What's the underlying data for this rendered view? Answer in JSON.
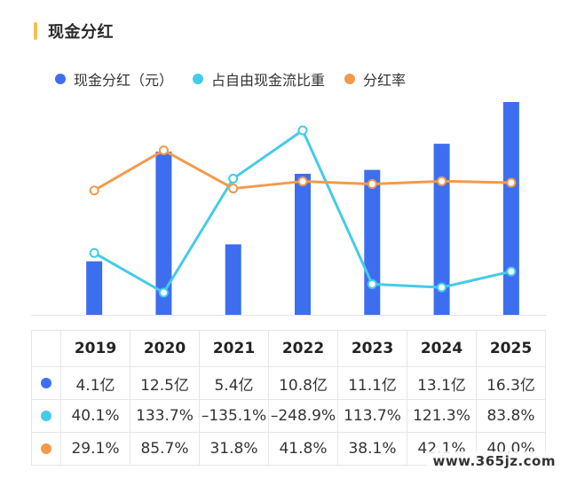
{
  "header": {
    "title": "现金分红"
  },
  "legend": [
    {
      "label": "现金分红（元）",
      "color": "#3e6ef0"
    },
    {
      "label": "占自由现金流比重",
      "color": "#45cbe8"
    },
    {
      "label": "分红率",
      "color": "#f39a4c"
    }
  ],
  "chart_data": {
    "type": "bar",
    "categories": [
      "2019",
      "2020",
      "2021",
      "2022",
      "2023",
      "2024",
      "2025"
    ],
    "series": [
      {
        "name": "现金分红（元）",
        "type": "bar",
        "unit": "亿",
        "values": [
          4.1,
          12.5,
          5.4,
          10.8,
          11.1,
          13.1,
          16.3
        ],
        "labels": [
          "4.1亿",
          "12.5亿",
          "5.4亿",
          "10.8亿",
          "11.1亿",
          "13.1亿",
          "16.3亿"
        ]
      },
      {
        "name": "占自由现金流比重",
        "type": "line",
        "unit": "%",
        "values": [
          40.1,
          133.7,
          -135.1,
          -248.9,
          113.7,
          121.3,
          83.8
        ],
        "labels": [
          "40.1%",
          "133.7%",
          "–135.1%",
          "–248.9%",
          "113.7%",
          "121.3%",
          "83.8%"
        ]
      },
      {
        "name": "分红率",
        "type": "line",
        "unit": "%",
        "values": [
          29.1,
          85.7,
          31.8,
          41.8,
          38.1,
          42.1,
          40.0
        ],
        "labels": [
          "29.1%",
          "85.7%",
          "31.8%",
          "41.8%",
          "38.1%",
          "42.1%",
          "40.0%"
        ]
      }
    ],
    "grid": false
  },
  "watermark": "www.365jz.com"
}
